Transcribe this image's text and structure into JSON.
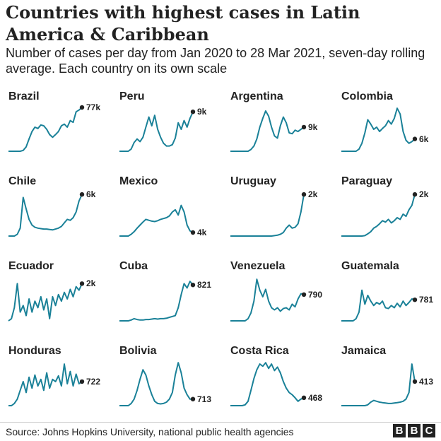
{
  "title": "Countries with highest cases in Latin America & Caribbean",
  "subtitle": "Number of cases per day from Jan 2020 to 28 Mar 2021, seven-day rolling average. Each country on its own scale",
  "source": "Source: Johns Hopkins University, national public health agencies",
  "logo": [
    "B",
    "B",
    "C"
  ],
  "colors": {
    "line": "#1a8198",
    "dot": "#222222",
    "text": "#222222"
  },
  "chart_data": {
    "type": "line",
    "x_range": [
      "Jan 2020",
      "28 Mar 2021"
    ],
    "y_scale": "independent per panel",
    "panels": [
      {
        "name": "Brazil",
        "end_label": "77k",
        "values": [
          0,
          0,
          0,
          0,
          0,
          0.02,
          0.1,
          0.28,
          0.45,
          0.55,
          0.52,
          0.6,
          0.58,
          0.5,
          0.38,
          0.32,
          0.38,
          0.45,
          0.58,
          0.62,
          0.55,
          0.7,
          0.66,
          0.9,
          0.94,
          1
        ]
      },
      {
        "name": "Peru",
        "end_label": "9k",
        "values": [
          0,
          0,
          0,
          0,
          0.05,
          0.2,
          0.28,
          0.22,
          0.32,
          0.55,
          0.78,
          0.58,
          0.82,
          0.5,
          0.32,
          0.18,
          0.12,
          0.12,
          0.15,
          0.3,
          0.65,
          0.5,
          0.7,
          0.55,
          0.75,
          0.9
        ]
      },
      {
        "name": "Argentina",
        "end_label": "9k",
        "values": [
          0,
          0,
          0,
          0,
          0,
          0,
          0,
          0.04,
          0.12,
          0.28,
          0.55,
          0.75,
          0.92,
          0.8,
          0.55,
          0.35,
          0.3,
          0.58,
          0.78,
          0.65,
          0.42,
          0.4,
          0.48,
          0.45,
          0.5,
          0.55
        ]
      },
      {
        "name": "Colombia",
        "end_label": "6k",
        "values": [
          0,
          0,
          0,
          0,
          0,
          0,
          0.05,
          0.18,
          0.42,
          0.72,
          0.62,
          0.5,
          0.55,
          0.45,
          0.52,
          0.58,
          0.7,
          0.62,
          0.75,
          0.98,
          0.85,
          0.45,
          0.25,
          0.18,
          0.22,
          0.28
        ]
      },
      {
        "name": "Chile",
        "end_label": "6k",
        "values": [
          0,
          0,
          0,
          0.04,
          0.18,
          0.88,
          0.62,
          0.38,
          0.25,
          0.2,
          0.18,
          0.17,
          0.16,
          0.16,
          0.15,
          0.14,
          0.16,
          0.18,
          0.22,
          0.3,
          0.38,
          0.36,
          0.42,
          0.55,
          0.8,
          0.95
        ]
      },
      {
        "name": "Mexico",
        "end_label": "4k",
        "values": [
          0,
          0,
          0,
          0,
          0.04,
          0.1,
          0.18,
          0.25,
          0.32,
          0.38,
          0.36,
          0.34,
          0.33,
          0.35,
          0.38,
          0.4,
          0.42,
          0.46,
          0.55,
          0.6,
          0.48,
          0.7,
          0.55,
          0.25,
          0.12,
          0.08
        ]
      },
      {
        "name": "Uruguay",
        "end_label": "2k",
        "values": [
          0,
          0,
          0,
          0,
          0,
          0,
          0,
          0,
          0,
          0,
          0,
          0,
          0,
          0,
          0,
          0.01,
          0.02,
          0.04,
          0.08,
          0.18,
          0.25,
          0.18,
          0.2,
          0.28,
          0.55,
          0.95
        ]
      },
      {
        "name": "Paraguay",
        "end_label": "2k",
        "values": [
          0,
          0,
          0,
          0,
          0,
          0,
          0,
          0,
          0.01,
          0.05,
          0.1,
          0.18,
          0.22,
          0.28,
          0.35,
          0.32,
          0.38,
          0.3,
          0.35,
          0.42,
          0.38,
          0.5,
          0.45,
          0.6,
          0.7,
          0.95
        ]
      },
      {
        "name": "Ecuador",
        "end_label": "2k",
        "values": [
          0,
          0.05,
          0.3,
          0.85,
          0.2,
          0.35,
          0.12,
          0.5,
          0.2,
          0.45,
          0.3,
          0.55,
          0.25,
          0.5,
          0.05,
          0.55,
          0.35,
          0.6,
          0.45,
          0.65,
          0.5,
          0.72,
          0.55,
          0.78,
          0.7,
          0.85
        ]
      },
      {
        "name": "Cuba",
        "end_label": "821",
        "values": [
          0,
          0,
          0,
          0,
          0.02,
          0.05,
          0.03,
          0.02,
          0.02,
          0.03,
          0.03,
          0.04,
          0.05,
          0.04,
          0.05,
          0.05,
          0.06,
          0.08,
          0.1,
          0.12,
          0.3,
          0.6,
          0.85,
          0.75,
          0.9,
          0.82
        ]
      },
      {
        "name": "Venezuela",
        "end_label": "790",
        "values": [
          0,
          0,
          0,
          0,
          0,
          0,
          0.05,
          0.18,
          0.45,
          0.95,
          0.7,
          0.55,
          0.72,
          0.45,
          0.3,
          0.25,
          0.3,
          0.22,
          0.28,
          0.3,
          0.25,
          0.38,
          0.32,
          0.5,
          0.62,
          0.6
        ]
      },
      {
        "name": "Guatemala",
        "end_label": "781",
        "values": [
          0,
          0,
          0,
          0,
          0,
          0.05,
          0.2,
          0.7,
          0.38,
          0.58,
          0.45,
          0.35,
          0.42,
          0.38,
          0.45,
          0.3,
          0.28,
          0.35,
          0.3,
          0.4,
          0.32,
          0.45,
          0.35,
          0.42,
          0.5,
          0.48
        ]
      },
      {
        "name": "Honduras",
        "end_label": "722",
        "values": [
          0,
          0,
          0.05,
          0.15,
          0.35,
          0.55,
          0.3,
          0.65,
          0.4,
          0.7,
          0.45,
          0.6,
          0.35,
          0.75,
          0.4,
          0.6,
          0.55,
          0.68,
          0.45,
          0.95,
          0.5,
          0.78,
          0.45,
          0.72,
          0.5,
          0.55
        ]
      },
      {
        "name": "Bolivia",
        "end_label": "713",
        "values": [
          0,
          0,
          0,
          0,
          0.05,
          0.15,
          0.35,
          0.6,
          0.82,
          0.7,
          0.45,
          0.25,
          0.1,
          0.05,
          0.04,
          0.05,
          0.08,
          0.15,
          0.3,
          0.7,
          0.98,
          0.75,
          0.4,
          0.25,
          0.15,
          0.15
        ]
      },
      {
        "name": "Costa Rica",
        "end_label": "468",
        "values": [
          0,
          0,
          0,
          0,
          0,
          0.02,
          0.1,
          0.35,
          0.62,
          0.82,
          0.95,
          0.9,
          0.98,
          0.85,
          0.95,
          0.8,
          0.88,
          0.75,
          0.55,
          0.4,
          0.3,
          0.25,
          0.18,
          0.1,
          0.15,
          0.18
        ]
      },
      {
        "name": "Jamaica",
        "end_label": "413",
        "values": [
          0,
          0,
          0,
          0,
          0,
          0,
          0,
          0,
          0,
          0.02,
          0.08,
          0.12,
          0.1,
          0.08,
          0.07,
          0.06,
          0.05,
          0.05,
          0.06,
          0.07,
          0.08,
          0.1,
          0.15,
          0.3,
          0.95,
          0.55
        ]
      }
    ]
  }
}
